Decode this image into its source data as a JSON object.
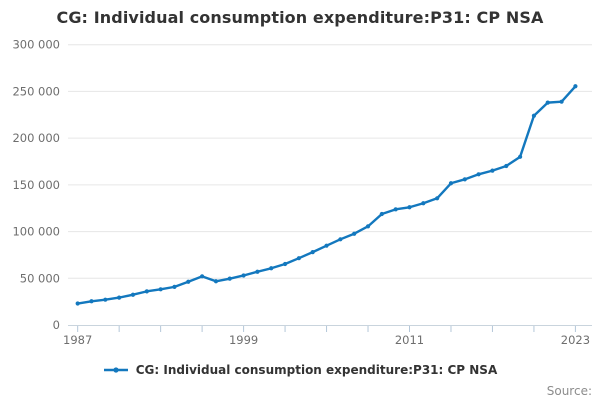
{
  "footer": {
    "source_label": "Source:"
  },
  "colors": {
    "line": "#1378be",
    "grid": "#e6e6e6",
    "axis_line": "#c9d4dd",
    "tick": "#b4c7d9",
    "title_text": "#333333",
    "axis_text": "#6e6e6e",
    "source_text": "#8c8c8c"
  },
  "chart_data": {
    "type": "line",
    "title": "CG: Individual consumption expenditure:P31: CP NSA",
    "xlabel": "",
    "ylabel": "",
    "xlim": [
      1986.3,
      2024.2
    ],
    "ylim": [
      0,
      300000
    ],
    "grid": "horizontal",
    "legend_position": "bottom",
    "yticks": {
      "values": [
        0,
        50000,
        100000,
        150000,
        200000,
        250000,
        300000
      ],
      "labels": [
        "0",
        "50 000",
        "100 000",
        "150 000",
        "200 000",
        "250 000",
        "300 000"
      ]
    },
    "xticks": {
      "values": [
        1987,
        1990,
        1993,
        1996,
        1999,
        2002,
        2005,
        2008,
        2011,
        2014,
        2017,
        2020,
        2023
      ],
      "labels": {
        "1987": "1987",
        "1999": "1999",
        "2011": "2011",
        "2023": "2023"
      }
    },
    "series": [
      {
        "name": "CG: Individual consumption expenditure:P31: CP NSA",
        "color": "#1378be",
        "marker": "dot",
        "x": [
          1987,
          1988,
          1989,
          1990,
          1991,
          1992,
          1993,
          1994,
          1995,
          1996,
          1997,
          1998,
          1999,
          2000,
          2001,
          2002,
          2003,
          2004,
          2005,
          2006,
          2007,
          2008,
          2009,
          2010,
          2011,
          2012,
          2013,
          2014,
          2015,
          2016,
          2017,
          2018,
          2019,
          2020,
          2021,
          2022,
          2023
        ],
        "values": [
          23000,
          25400,
          27100,
          29300,
          32400,
          36000,
          38200,
          40800,
          46300,
          52100,
          46800,
          49600,
          53000,
          57000,
          60700,
          65300,
          71500,
          78000,
          84900,
          91700,
          97700,
          105600,
          118800,
          123800,
          126000,
          130300,
          135600,
          151700,
          155900,
          161300,
          165200,
          170200,
          180000,
          224000,
          238000,
          239000,
          255500
        ]
      }
    ]
  }
}
